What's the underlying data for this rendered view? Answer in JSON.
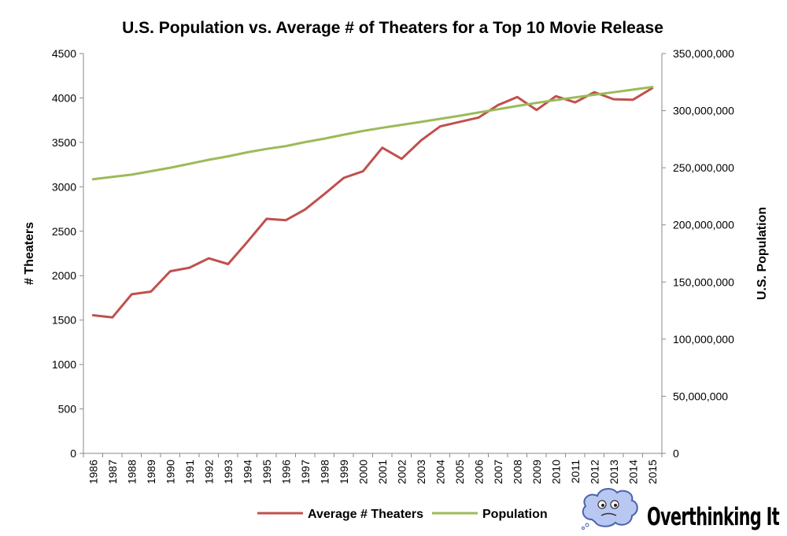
{
  "chart_data": {
    "type": "line",
    "title": "U.S. Population vs. Average # of Theaters for a Top 10 Movie Release",
    "ylabel_left": "# Theaters",
    "ylabel_right": "U.S. Population",
    "xlabel": "",
    "ylim_left": [
      0,
      4500
    ],
    "ylim_right": [
      0,
      350000000
    ],
    "left_ticks": [
      "0",
      "500",
      "1000",
      "1500",
      "2000",
      "2500",
      "3000",
      "3500",
      "4000",
      "4500"
    ],
    "right_ticks": [
      "0",
      "50,000,000",
      "100,000,000",
      "150,000,000",
      "200,000,000",
      "250,000,000",
      "300,000,000",
      "350,000,000"
    ],
    "grid": false,
    "legend_position": "bottom",
    "categories": [
      "1986",
      "1987",
      "1988",
      "1989",
      "1990",
      "1991",
      "1992",
      "1993",
      "1994",
      "1995",
      "1996",
      "1997",
      "1998",
      "1999",
      "2000",
      "2001",
      "2002",
      "2003",
      "2004",
      "2005",
      "2006",
      "2007",
      "2008",
      "2009",
      "2010",
      "2011",
      "2012",
      "2013",
      "2014",
      "2015"
    ],
    "series": [
      {
        "name": "Average # Theaters",
        "axis": "left",
        "color": "#c0504d",
        "values": [
          1555,
          1530,
          1790,
          1820,
          2050,
          2090,
          2195,
          2130,
          2380,
          2640,
          2625,
          2745,
          2920,
          3100,
          3175,
          3440,
          3315,
          3520,
          3680,
          3730,
          3780,
          3920,
          4010,
          3865,
          4020,
          3950,
          4065,
          3985,
          3980,
          4110
        ]
      },
      {
        "name": "Population",
        "axis": "right",
        "color": "#9bbb59",
        "values": [
          240000000,
          242000000,
          244000000,
          247000000,
          250000000,
          253500000,
          257000000,
          260000000,
          263500000,
          266500000,
          269000000,
          272500000,
          275500000,
          279000000,
          282200000,
          285000000,
          287600000,
          290100000,
          292800000,
          295500000,
          298400000,
          301200000,
          304100000,
          306800000,
          309300000,
          311600000,
          313900000,
          316100000,
          318400000,
          320700000
        ]
      }
    ]
  },
  "branding": {
    "name": "Overthinking It",
    "logo_icon": "cloud-face-icon"
  }
}
